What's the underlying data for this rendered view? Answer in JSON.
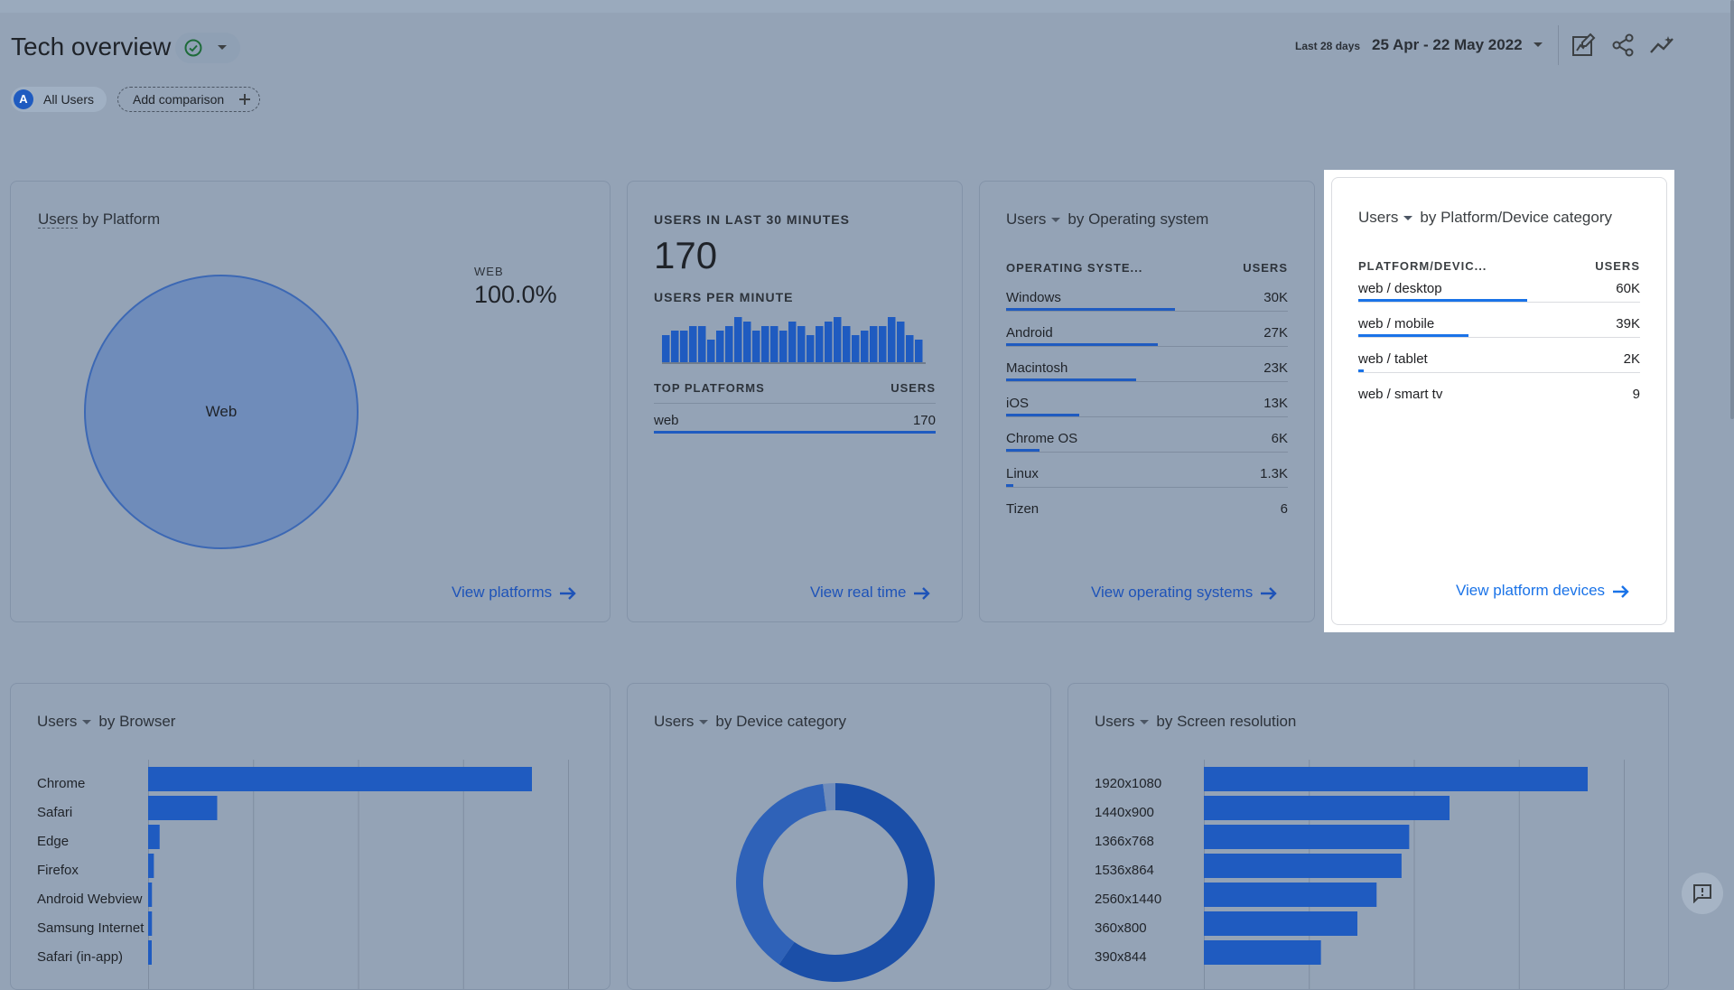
{
  "header": {
    "title": "Tech overview",
    "date_label": "Last 28 days",
    "date_range": "25 Apr - 22 May 2022"
  },
  "comparison": {
    "segment_avatar": "A",
    "segment_label": "All Users",
    "add_label": "Add comparison"
  },
  "cards": {
    "platform": {
      "title_metric": "Users",
      "title_rest": " by Platform",
      "legend_label": "WEB",
      "legend_value": "100.0%",
      "slice_label": "Web",
      "link": "View platforms"
    },
    "realtime": {
      "title": "USERS IN LAST 30 MINUTES",
      "value": "170",
      "subtitle": "USERS PER MINUTE",
      "col1": "TOP PLATFORMS",
      "col2": "USERS",
      "rows": [
        {
          "name": "web",
          "value": "170"
        }
      ],
      "link": "View real time"
    },
    "os": {
      "title_metric": "Users",
      "title_rest": "by Operating system",
      "col1": "OPERATING SYSTE...",
      "col2": "USERS",
      "rows": [
        {
          "name": "Windows",
          "value": "30K"
        },
        {
          "name": "Android",
          "value": "27K"
        },
        {
          "name": "Macintosh",
          "value": "23K"
        },
        {
          "name": "iOS",
          "value": "13K"
        },
        {
          "name": "Chrome OS",
          "value": "6K"
        },
        {
          "name": "Linux",
          "value": "1.3K"
        },
        {
          "name": "Tizen",
          "value": "6"
        }
      ],
      "link": "View operating systems"
    },
    "device_platform": {
      "title_metric": "Users",
      "title_rest": "by Platform/Device category",
      "col1": "PLATFORM/DEVIC...",
      "col2": "USERS",
      "rows": [
        {
          "name": "web / desktop",
          "value": "60K"
        },
        {
          "name": "web / mobile",
          "value": "39K"
        },
        {
          "name": "web / tablet",
          "value": "2K"
        },
        {
          "name": "web / smart tv",
          "value": "9"
        }
      ],
      "link": "View platform devices"
    },
    "browser": {
      "title_metric": "Users",
      "title_rest": "by Browser",
      "labels": [
        "Chrome",
        "Safari",
        "Edge",
        "Firefox",
        "Android Webview",
        "Samsung Internet",
        "Safari (in-app)"
      ]
    },
    "device": {
      "title_metric": "Users",
      "title_rest": "by Device category"
    },
    "resolution": {
      "title_metric": "Users",
      "title_rest": "by Screen resolution",
      "labels": [
        "1920x1080",
        "1440x900",
        "1366x768",
        "1536x864",
        "2560x1440",
        "360x800",
        "390x844"
      ]
    }
  },
  "chart_data": [
    {
      "type": "pie",
      "categories": [
        "Web"
      ],
      "values": [
        100.0
      ]
    },
    {
      "type": "bar",
      "values": [
        6,
        7,
        7,
        8,
        8,
        5,
        7,
        8,
        10,
        9,
        7,
        8,
        8,
        7,
        9,
        8,
        6,
        8,
        9,
        10,
        8,
        6,
        7,
        8,
        8,
        10,
        9,
        6,
        5
      ]
    },
    {
      "type": "bar",
      "categories": [
        "Chrome",
        "Safari",
        "Edge",
        "Firefox",
        "Android Webview",
        "Samsung Internet",
        "Safari (in-app)"
      ],
      "values": [
        100,
        18,
        3,
        1.5,
        1,
        1,
        0.5
      ]
    },
    {
      "type": "pie",
      "categories": [
        "desktop",
        "mobile",
        "tablet"
      ],
      "values": [
        59.6,
        38.4,
        2.0
      ]
    },
    {
      "type": "bar",
      "categories": [
        "1920x1080",
        "1440x900",
        "1366x768",
        "1536x864",
        "2560x1440",
        "360x800",
        "390x844"
      ],
      "values": [
        100,
        64,
        53.5,
        51.5,
        45,
        40,
        30.5
      ]
    }
  ],
  "colors": {
    "accent": "#1f5bc0",
    "link": "#1a73e8",
    "page_overlay": "#94a3b6",
    "highlight_card": "#ffffff"
  }
}
